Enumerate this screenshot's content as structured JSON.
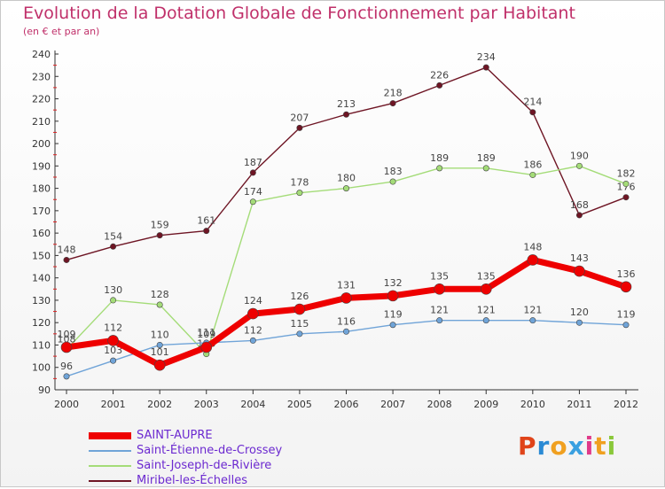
{
  "header": {
    "title": "Evolution de la Dotation Globale de Fonctionnement par Habitant",
    "subtitle": "(en € et par an)"
  },
  "chart_data": {
    "type": "line",
    "title": "Evolution de la Dotation Globale de Fonctionnement par Habitant",
    "subtitle": "(en € et par an)",
    "xlabel": "",
    "ylabel": "",
    "categories": [
      "2000",
      "2001",
      "2002",
      "2003",
      "2004",
      "2005",
      "2006",
      "2007",
      "2008",
      "2009",
      "2010",
      "2011",
      "2012"
    ],
    "ylim": [
      90,
      240
    ],
    "yticks": [
      90,
      100,
      110,
      120,
      130,
      140,
      150,
      160,
      170,
      180,
      190,
      200,
      210,
      220,
      230,
      240
    ],
    "grid": false,
    "legend_position": "bottom-left",
    "series": [
      {
        "name": "Miribel-les-Échelles",
        "color": "#6e1524",
        "values": [
          148,
          154,
          159,
          161,
          187,
          207,
          213,
          218,
          226,
          234,
          214,
          168,
          176
        ]
      },
      {
        "name": "Saint-Joseph-de-Rivière",
        "color": "#a4dc78",
        "values": [
          108,
          130,
          128,
          106,
          174,
          178,
          180,
          183,
          189,
          189,
          186,
          190,
          182
        ]
      },
      {
        "name": "Saint-Étienne-de-Crossey",
        "color": "#70a4d8",
        "values": [
          96,
          103,
          110,
          111,
          112,
          115,
          116,
          119,
          121,
          121,
          121,
          120,
          119
        ]
      },
      {
        "name": "SAINT-AUPRE",
        "color": "#ee0000",
        "values": [
          109,
          112,
          101,
          109,
          124,
          126,
          131,
          132,
          135,
          135,
          148,
          143,
          136
        ]
      }
    ]
  },
  "legend": {
    "items": [
      {
        "label": "SAINT-AUPRE",
        "color": "#ee0000"
      },
      {
        "label": "Saint-Étienne-de-Crossey",
        "color": "#70a4d8"
      },
      {
        "label": "Saint-Joseph-de-Rivière",
        "color": "#a4dc78"
      },
      {
        "label": "Miribel-les-Échelles",
        "color": "#6e1524"
      }
    ]
  },
  "logo": {
    "letters": [
      "P",
      "r",
      "o",
      "x",
      "i",
      "t",
      "i"
    ],
    "colors": [
      "#e0441a",
      "#2a8ad4",
      "#f0a020",
      "#3aa0e0",
      "#e03a8a",
      "#f0a020",
      "#8ac83a"
    ]
  }
}
